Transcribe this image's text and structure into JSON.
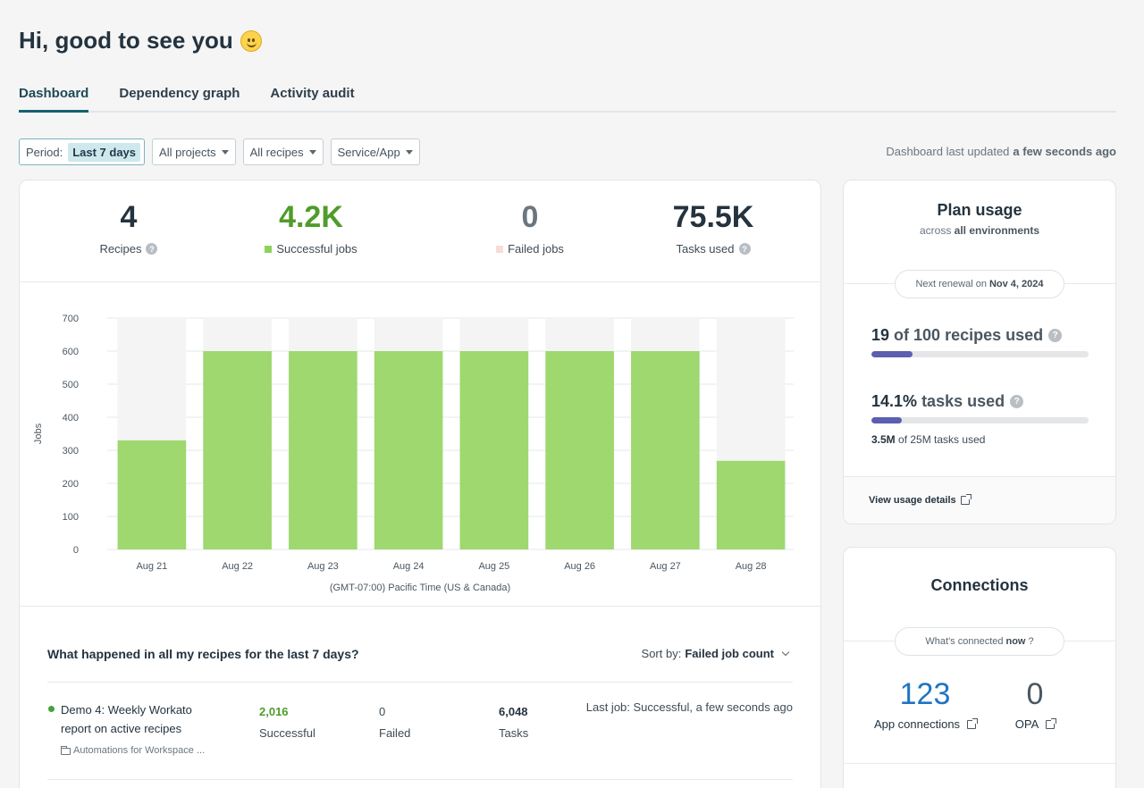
{
  "greeting": "Hi, good to see you",
  "tabs": [
    {
      "label": "Dashboard"
    },
    {
      "label": "Dependency graph"
    },
    {
      "label": "Activity audit"
    }
  ],
  "filters": {
    "period_label": "Period:",
    "period_value": "Last 7 days",
    "projects": "All projects",
    "recipes": "All recipes",
    "service": "Service/App"
  },
  "updated": {
    "label": "Dashboard last updated",
    "value": "a few seconds ago"
  },
  "stats": [
    {
      "value": "4",
      "label": "Recipes"
    },
    {
      "value": "4.2K",
      "label": "Successful jobs"
    },
    {
      "value": "0",
      "label": "Failed jobs"
    },
    {
      "value": "75.5K",
      "label": "Tasks used"
    }
  ],
  "colors": {
    "success": "#9ed86f",
    "failed": "#f6ddd6",
    "accent": "#16606e",
    "plan_bar": "#5c5fb0",
    "link_blue": "#1f74c4"
  },
  "chart_data": {
    "type": "bar",
    "categories": [
      "Aug 21",
      "Aug 22",
      "Aug 23",
      "Aug 24",
      "Aug 25",
      "Aug 26",
      "Aug 27",
      "Aug 28"
    ],
    "values": [
      330,
      600,
      600,
      600,
      600,
      600,
      600,
      268
    ],
    "ylabel": "Jobs",
    "xlabel": "(GMT-07:00) Pacific Time (US & Canada)",
    "ylim": [
      0,
      700
    ],
    "yticks": [
      0,
      100,
      200,
      300,
      400,
      500,
      600,
      700
    ],
    "grid": true
  },
  "recipes_section": {
    "title": "What happened in all my recipes for the last 7 days?",
    "sort_label": "Sort by:",
    "sort_value": "Failed job count",
    "rows": [
      {
        "name": "Demo 4: Weekly Workato report on active recipes",
        "folder": "Automations for Workspace ...",
        "successful": "2,016",
        "successful_label": "Successful",
        "failed": "0",
        "failed_label": "Failed",
        "tasks": "6,048",
        "tasks_label": "Tasks",
        "last_job": "Last job: Successful, a few seconds ago"
      }
    ]
  },
  "plan": {
    "title": "Plan usage",
    "sub_prefix": "across",
    "sub_strong": "all environments",
    "renewal_label": "Next renewal on",
    "renewal_date": "Nov 4, 2024",
    "recipes_used_num": "19",
    "recipes_used_text": "of 100 recipes used",
    "recipes_fraction": 0.19,
    "tasks_pct": "14.1%",
    "tasks_text": "tasks used",
    "tasks_fraction": 0.141,
    "tasks_note_strong": "3.5M",
    "tasks_note": "of 25M tasks used",
    "view_link": "View usage details"
  },
  "connections": {
    "title": "Connections",
    "pill_prefix": "What's connected",
    "pill_strong": "now",
    "pill_suffix": "?",
    "app_count": "123",
    "app_label": "App connections",
    "opa_count": "0",
    "opa_label": "OPA"
  }
}
